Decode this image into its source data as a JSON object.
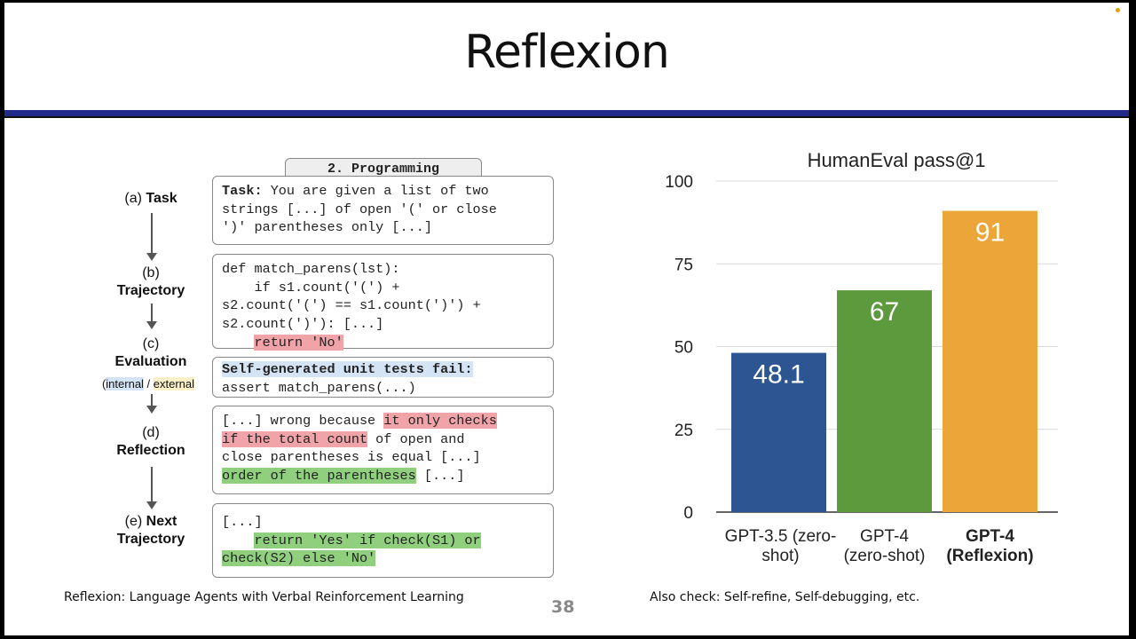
{
  "slide": {
    "title": "Reflexion",
    "page_number": "38",
    "footer_left": "Reflexion: Language Agents with Verbal Reinforcement Learning",
    "footer_right": "Also check: Self-refine, Self-debugging, etc."
  },
  "diagram": {
    "header": "2. Programming",
    "steps": {
      "a_prefix": "(a) ",
      "a_name": "Task",
      "b_prefix": "(b)",
      "b_name": "Trajectory",
      "c_prefix": "(c)",
      "c_name": "Evaluation",
      "c_sub_internal": "internal",
      "c_sub_sep": " / ",
      "c_sub_external": "external",
      "c_paren_open": "(",
      "d_prefix": "(d)",
      "d_name": "Reflection",
      "e_prefix": "(e) ",
      "e_name1": "Next",
      "e_name2": "Trajectory"
    },
    "task": {
      "bold": "Task:",
      "l1": " You are given a list of two",
      "l2": "strings [...] of open '(' or close",
      "l3": "')' parentheses only [...]"
    },
    "trajectory": {
      "l1": "def match_parens(lst):",
      "l2": "    if s1.count('(') +",
      "l3": "s2.count('(') == s1.count(')') +",
      "l4": "s2.count(')'): [...]",
      "l5_indent": "    ",
      "l5_hl": "return 'No'"
    },
    "evaluation": {
      "l1": "Self-generated unit tests fail:",
      "l2": "assert match_parens(...)"
    },
    "reflection": {
      "l1a": "[...] wrong because ",
      "l1b": "it only checks",
      "l2a": "if the total count",
      "l2b": " of open and",
      "l3": "close parentheses is equal [...]",
      "l4a": "order of the parentheses",
      "l4b": " [...]"
    },
    "next": {
      "l1": "[...]",
      "l2_indent": "    ",
      "l2_hl": "return 'Yes' if check(S1) or",
      "l3_hl": "check(S2) else 'No'"
    }
  },
  "chart_data": {
    "type": "bar",
    "title": "HumanEval pass@1",
    "categories": [
      "GPT-3.5 (zero-shot)",
      "GPT-4 (zero-shot)",
      "GPT-4 (Reflexion)"
    ],
    "category_lines": [
      [
        "GPT-3.5 (zero-",
        "shot)"
      ],
      [
        "GPT-4",
        "(zero-shot)"
      ],
      [
        "GPT-4",
        "(Reflexion)"
      ]
    ],
    "category_bold": [
      false,
      false,
      true
    ],
    "values": [
      48.1,
      67,
      91
    ],
    "value_labels": [
      "48.1",
      "67",
      "91"
    ],
    "colors": [
      "#2d5591",
      "#5d9a3e",
      "#eba539"
    ],
    "ylim": [
      0,
      100
    ],
    "yticks": [
      0,
      25,
      50,
      75,
      100
    ],
    "grid": true,
    "xlabel": "",
    "ylabel": ""
  }
}
